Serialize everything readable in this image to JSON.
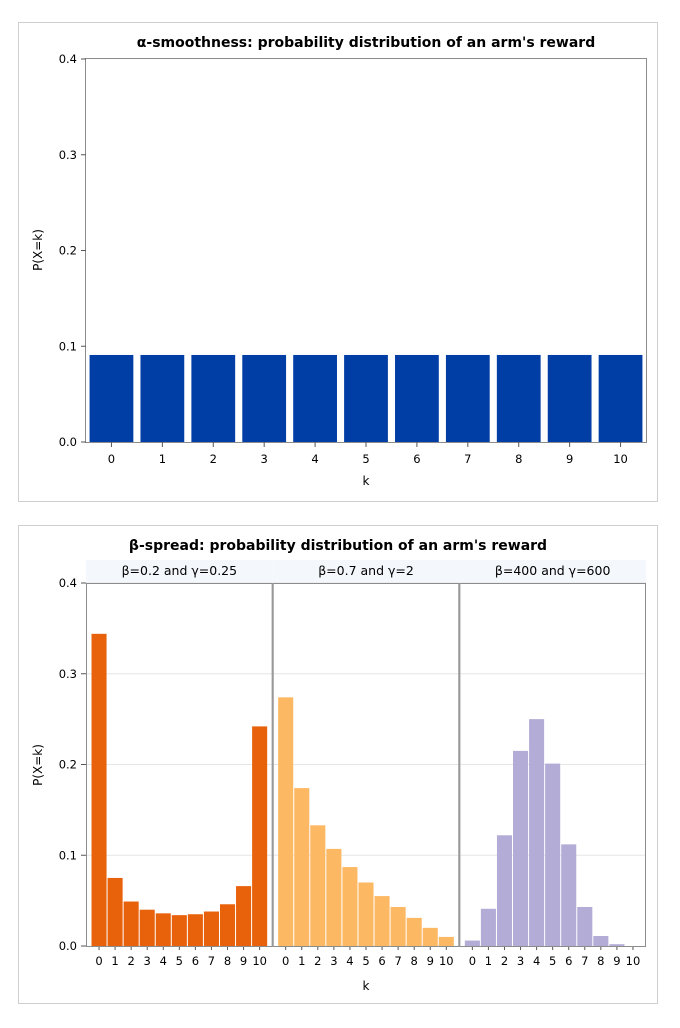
{
  "chart_data": [
    {
      "type": "bar",
      "title": "α-smoothness: probability distribution of an arm's reward",
      "xlabel": "k",
      "ylabel": "P(X=k)",
      "ylim": [
        0,
        0.4
      ],
      "yticks": [
        "0.0",
        "0.1",
        "0.2",
        "0.3",
        "0.4"
      ],
      "yticks_values": [
        0,
        0.1,
        0.2,
        0.3,
        0.4
      ],
      "categories": [
        "0",
        "1",
        "2",
        "3",
        "4",
        "5",
        "6",
        "7",
        "8",
        "9",
        "10"
      ],
      "values": [
        0.0909,
        0.0909,
        0.0909,
        0.0909,
        0.0909,
        0.0909,
        0.0909,
        0.0909,
        0.0909,
        0.0909,
        0.0909
      ],
      "color": "#003da5"
    },
    {
      "type": "bar",
      "title": "β-spread: probability distribution of an arm's reward",
      "xlabel": "k",
      "ylabel": "P(X=k)",
      "ylim": [
        0,
        0.4
      ],
      "yticks": [
        "0.0",
        "0.1",
        "0.2",
        "0.3",
        "0.4"
      ],
      "yticks_values": [
        0,
        0.1,
        0.2,
        0.3,
        0.4
      ],
      "categories": [
        "0",
        "1",
        "2",
        "3",
        "4",
        "5",
        "6",
        "7",
        "8",
        "9",
        "10"
      ],
      "panels": [
        {
          "name": "β=0.2 and γ=0.25",
          "color": "#e8620c",
          "values": [
            0.344,
            0.075,
            0.049,
            0.04,
            0.036,
            0.034,
            0.035,
            0.038,
            0.046,
            0.066,
            0.242
          ]
        },
        {
          "name": "β=0.7 and γ=2",
          "color": "#fdb864",
          "values": [
            0.274,
            0.174,
            0.133,
            0.107,
            0.087,
            0.07,
            0.055,
            0.043,
            0.031,
            0.02,
            0.01
          ]
        },
        {
          "name": "β=400 and γ=600",
          "color": "#b3acd6",
          "values": [
            0.006,
            0.041,
            0.122,
            0.215,
            0.25,
            0.201,
            0.112,
            0.043,
            0.011,
            0.002,
            0.0
          ]
        }
      ]
    }
  ]
}
